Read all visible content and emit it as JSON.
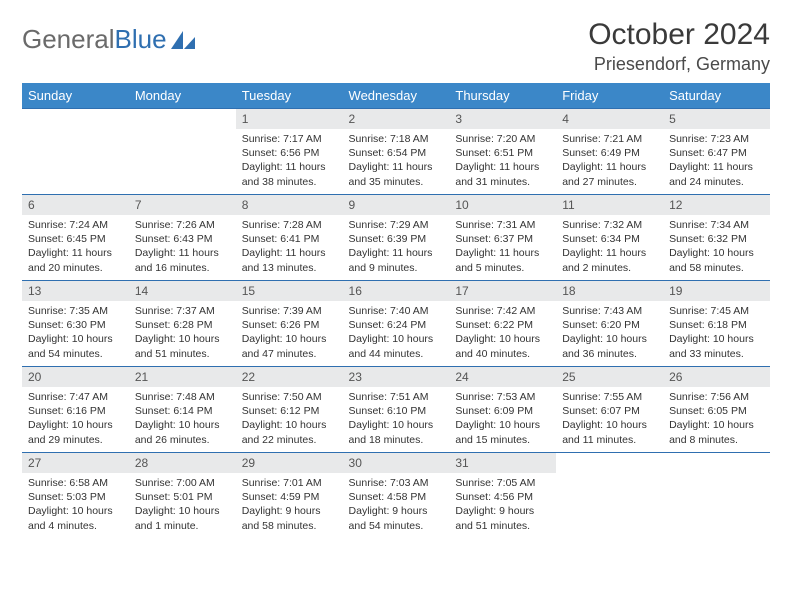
{
  "logo": {
    "text_gray": "General",
    "text_blue": "Blue"
  },
  "header": {
    "month_title": "October 2024",
    "location": "Priesendorf, Germany"
  },
  "colors": {
    "header_bg": "#3b87c8",
    "header_text": "#ffffff",
    "daynum_bg": "#e8e9ea",
    "cell_border": "#2f6fb0",
    "logo_gray": "#6a6a6a",
    "logo_blue": "#2f6fb0"
  },
  "day_names": [
    "Sunday",
    "Monday",
    "Tuesday",
    "Wednesday",
    "Thursday",
    "Friday",
    "Saturday"
  ],
  "leading_blanks": 2,
  "days": [
    {
      "n": "1",
      "sunrise": "7:17 AM",
      "sunset": "6:56 PM",
      "daylight": "11 hours and 38 minutes."
    },
    {
      "n": "2",
      "sunrise": "7:18 AM",
      "sunset": "6:54 PM",
      "daylight": "11 hours and 35 minutes."
    },
    {
      "n": "3",
      "sunrise": "7:20 AM",
      "sunset": "6:51 PM",
      "daylight": "11 hours and 31 minutes."
    },
    {
      "n": "4",
      "sunrise": "7:21 AM",
      "sunset": "6:49 PM",
      "daylight": "11 hours and 27 minutes."
    },
    {
      "n": "5",
      "sunrise": "7:23 AM",
      "sunset": "6:47 PM",
      "daylight": "11 hours and 24 minutes."
    },
    {
      "n": "6",
      "sunrise": "7:24 AM",
      "sunset": "6:45 PM",
      "daylight": "11 hours and 20 minutes."
    },
    {
      "n": "7",
      "sunrise": "7:26 AM",
      "sunset": "6:43 PM",
      "daylight": "11 hours and 16 minutes."
    },
    {
      "n": "8",
      "sunrise": "7:28 AM",
      "sunset": "6:41 PM",
      "daylight": "11 hours and 13 minutes."
    },
    {
      "n": "9",
      "sunrise": "7:29 AM",
      "sunset": "6:39 PM",
      "daylight": "11 hours and 9 minutes."
    },
    {
      "n": "10",
      "sunrise": "7:31 AM",
      "sunset": "6:37 PM",
      "daylight": "11 hours and 5 minutes."
    },
    {
      "n": "11",
      "sunrise": "7:32 AM",
      "sunset": "6:34 PM",
      "daylight": "11 hours and 2 minutes."
    },
    {
      "n": "12",
      "sunrise": "7:34 AM",
      "sunset": "6:32 PM",
      "daylight": "10 hours and 58 minutes."
    },
    {
      "n": "13",
      "sunrise": "7:35 AM",
      "sunset": "6:30 PM",
      "daylight": "10 hours and 54 minutes."
    },
    {
      "n": "14",
      "sunrise": "7:37 AM",
      "sunset": "6:28 PM",
      "daylight": "10 hours and 51 minutes."
    },
    {
      "n": "15",
      "sunrise": "7:39 AM",
      "sunset": "6:26 PM",
      "daylight": "10 hours and 47 minutes."
    },
    {
      "n": "16",
      "sunrise": "7:40 AM",
      "sunset": "6:24 PM",
      "daylight": "10 hours and 44 minutes."
    },
    {
      "n": "17",
      "sunrise": "7:42 AM",
      "sunset": "6:22 PM",
      "daylight": "10 hours and 40 minutes."
    },
    {
      "n": "18",
      "sunrise": "7:43 AM",
      "sunset": "6:20 PM",
      "daylight": "10 hours and 36 minutes."
    },
    {
      "n": "19",
      "sunrise": "7:45 AM",
      "sunset": "6:18 PM",
      "daylight": "10 hours and 33 minutes."
    },
    {
      "n": "20",
      "sunrise": "7:47 AM",
      "sunset": "6:16 PM",
      "daylight": "10 hours and 29 minutes."
    },
    {
      "n": "21",
      "sunrise": "7:48 AM",
      "sunset": "6:14 PM",
      "daylight": "10 hours and 26 minutes."
    },
    {
      "n": "22",
      "sunrise": "7:50 AM",
      "sunset": "6:12 PM",
      "daylight": "10 hours and 22 minutes."
    },
    {
      "n": "23",
      "sunrise": "7:51 AM",
      "sunset": "6:10 PM",
      "daylight": "10 hours and 18 minutes."
    },
    {
      "n": "24",
      "sunrise": "7:53 AM",
      "sunset": "6:09 PM",
      "daylight": "10 hours and 15 minutes."
    },
    {
      "n": "25",
      "sunrise": "7:55 AM",
      "sunset": "6:07 PM",
      "daylight": "10 hours and 11 minutes."
    },
    {
      "n": "26",
      "sunrise": "7:56 AM",
      "sunset": "6:05 PM",
      "daylight": "10 hours and 8 minutes."
    },
    {
      "n": "27",
      "sunrise": "6:58 AM",
      "sunset": "5:03 PM",
      "daylight": "10 hours and 4 minutes."
    },
    {
      "n": "28",
      "sunrise": "7:00 AM",
      "sunset": "5:01 PM",
      "daylight": "10 hours and 1 minute."
    },
    {
      "n": "29",
      "sunrise": "7:01 AM",
      "sunset": "4:59 PM",
      "daylight": "9 hours and 58 minutes."
    },
    {
      "n": "30",
      "sunrise": "7:03 AM",
      "sunset": "4:58 PM",
      "daylight": "9 hours and 54 minutes."
    },
    {
      "n": "31",
      "sunrise": "7:05 AM",
      "sunset": "4:56 PM",
      "daylight": "9 hours and 51 minutes."
    }
  ],
  "labels": {
    "sunrise": "Sunrise: ",
    "sunset": "Sunset: ",
    "daylight": "Daylight: "
  }
}
